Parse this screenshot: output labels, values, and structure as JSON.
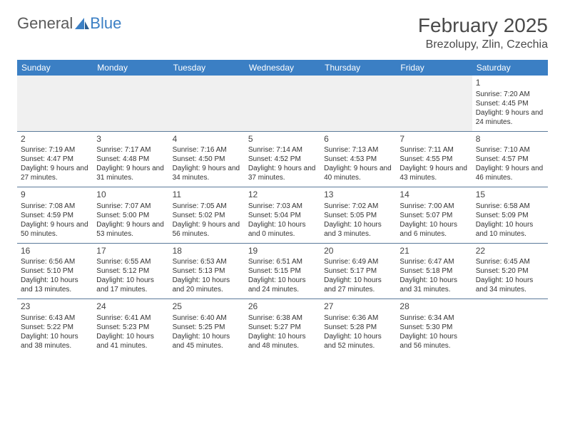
{
  "brand": {
    "part1": "General",
    "part2": "Blue"
  },
  "title": "February 2025",
  "location": "Brezolupy, Zlin, Czechia",
  "colors": {
    "header_bg": "#3b7fc4",
    "header_text": "#ffffff",
    "rule": "#5b7a9a",
    "empty_bg": "#f0f0f0",
    "text": "#333333",
    "title_text": "#4a4a4a"
  },
  "weekdays": [
    "Sunday",
    "Monday",
    "Tuesday",
    "Wednesday",
    "Thursday",
    "Friday",
    "Saturday"
  ],
  "weeks": [
    [
      null,
      null,
      null,
      null,
      null,
      null,
      {
        "d": "1",
        "sr": "7:20 AM",
        "ss": "4:45 PM",
        "dl": "9 hours and 24 minutes."
      }
    ],
    [
      {
        "d": "2",
        "sr": "7:19 AM",
        "ss": "4:47 PM",
        "dl": "9 hours and 27 minutes."
      },
      {
        "d": "3",
        "sr": "7:17 AM",
        "ss": "4:48 PM",
        "dl": "9 hours and 31 minutes."
      },
      {
        "d": "4",
        "sr": "7:16 AM",
        "ss": "4:50 PM",
        "dl": "9 hours and 34 minutes."
      },
      {
        "d": "5",
        "sr": "7:14 AM",
        "ss": "4:52 PM",
        "dl": "9 hours and 37 minutes."
      },
      {
        "d": "6",
        "sr": "7:13 AM",
        "ss": "4:53 PM",
        "dl": "9 hours and 40 minutes."
      },
      {
        "d": "7",
        "sr": "7:11 AM",
        "ss": "4:55 PM",
        "dl": "9 hours and 43 minutes."
      },
      {
        "d": "8",
        "sr": "7:10 AM",
        "ss": "4:57 PM",
        "dl": "9 hours and 46 minutes."
      }
    ],
    [
      {
        "d": "9",
        "sr": "7:08 AM",
        "ss": "4:59 PM",
        "dl": "9 hours and 50 minutes."
      },
      {
        "d": "10",
        "sr": "7:07 AM",
        "ss": "5:00 PM",
        "dl": "9 hours and 53 minutes."
      },
      {
        "d": "11",
        "sr": "7:05 AM",
        "ss": "5:02 PM",
        "dl": "9 hours and 56 minutes."
      },
      {
        "d": "12",
        "sr": "7:03 AM",
        "ss": "5:04 PM",
        "dl": "10 hours and 0 minutes."
      },
      {
        "d": "13",
        "sr": "7:02 AM",
        "ss": "5:05 PM",
        "dl": "10 hours and 3 minutes."
      },
      {
        "d": "14",
        "sr": "7:00 AM",
        "ss": "5:07 PM",
        "dl": "10 hours and 6 minutes."
      },
      {
        "d": "15",
        "sr": "6:58 AM",
        "ss": "5:09 PM",
        "dl": "10 hours and 10 minutes."
      }
    ],
    [
      {
        "d": "16",
        "sr": "6:56 AM",
        "ss": "5:10 PM",
        "dl": "10 hours and 13 minutes."
      },
      {
        "d": "17",
        "sr": "6:55 AM",
        "ss": "5:12 PM",
        "dl": "10 hours and 17 minutes."
      },
      {
        "d": "18",
        "sr": "6:53 AM",
        "ss": "5:13 PM",
        "dl": "10 hours and 20 minutes."
      },
      {
        "d": "19",
        "sr": "6:51 AM",
        "ss": "5:15 PM",
        "dl": "10 hours and 24 minutes."
      },
      {
        "d": "20",
        "sr": "6:49 AM",
        "ss": "5:17 PM",
        "dl": "10 hours and 27 minutes."
      },
      {
        "d": "21",
        "sr": "6:47 AM",
        "ss": "5:18 PM",
        "dl": "10 hours and 31 minutes."
      },
      {
        "d": "22",
        "sr": "6:45 AM",
        "ss": "5:20 PM",
        "dl": "10 hours and 34 minutes."
      }
    ],
    [
      {
        "d": "23",
        "sr": "6:43 AM",
        "ss": "5:22 PM",
        "dl": "10 hours and 38 minutes."
      },
      {
        "d": "24",
        "sr": "6:41 AM",
        "ss": "5:23 PM",
        "dl": "10 hours and 41 minutes."
      },
      {
        "d": "25",
        "sr": "6:40 AM",
        "ss": "5:25 PM",
        "dl": "10 hours and 45 minutes."
      },
      {
        "d": "26",
        "sr": "6:38 AM",
        "ss": "5:27 PM",
        "dl": "10 hours and 48 minutes."
      },
      {
        "d": "27",
        "sr": "6:36 AM",
        "ss": "5:28 PM",
        "dl": "10 hours and 52 minutes."
      },
      {
        "d": "28",
        "sr": "6:34 AM",
        "ss": "5:30 PM",
        "dl": "10 hours and 56 minutes."
      },
      null
    ]
  ],
  "labels": {
    "sunrise": "Sunrise:",
    "sunset": "Sunset:",
    "daylight": "Daylight:"
  }
}
